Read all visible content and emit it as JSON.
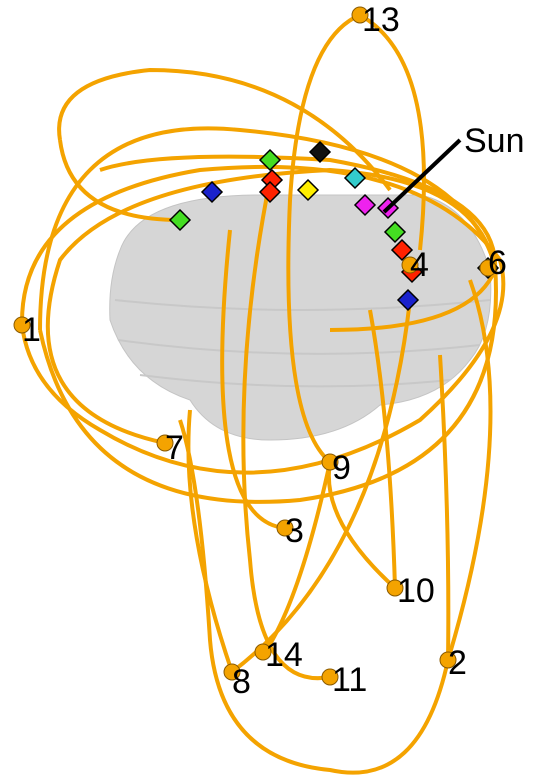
{
  "sun_label": "Sun",
  "points": [
    {
      "label": "13"
    },
    {
      "label": "4"
    },
    {
      "label": "6"
    },
    {
      "label": "1"
    },
    {
      "label": "7"
    },
    {
      "label": "9"
    },
    {
      "label": "3"
    },
    {
      "label": "10"
    },
    {
      "label": "14"
    },
    {
      "label": "11"
    },
    {
      "label": "8"
    },
    {
      "label": "2"
    }
  ]
}
